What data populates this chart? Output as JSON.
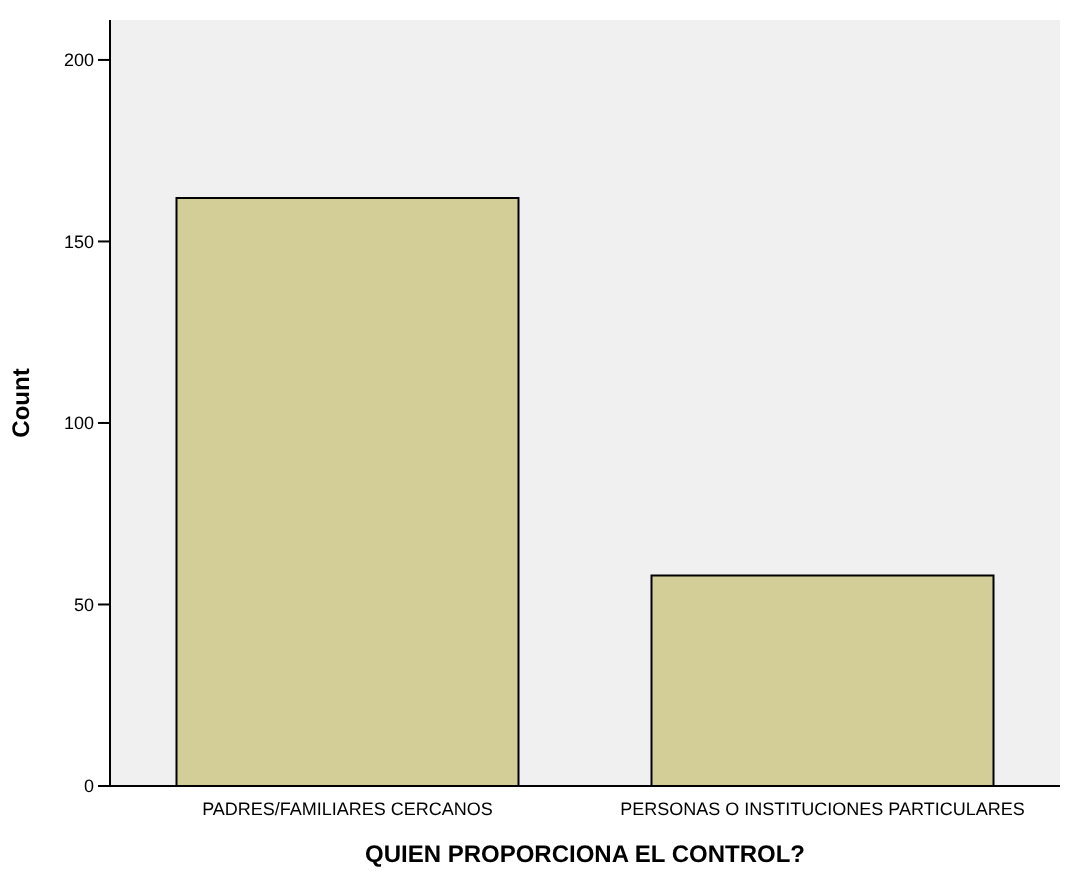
{
  "chart_data": {
    "type": "bar",
    "xlabel": "QUIEN PROPORCIONA EL CONTROL?",
    "ylabel": "Count",
    "categories": [
      "PADRES/FAMILIARES CERCANOS",
      "PERSONAS O INSTITUCIONES PARTICULARES"
    ],
    "values": [
      162,
      58
    ],
    "color": "#d3ce98",
    "ylim": [
      0,
      211
    ],
    "yticks": [
      0,
      50,
      100,
      150,
      200
    ],
    "grid": false
  }
}
